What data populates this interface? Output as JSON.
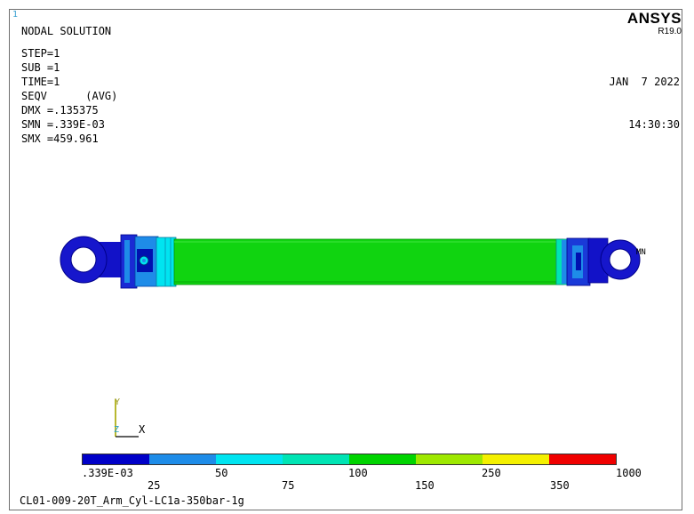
{
  "window_number": "1",
  "title": "NODAL SOLUTION",
  "params": [
    "STEP=1",
    "SUB =1",
    "TIME=1",
    "SEQV      (AVG)",
    "DMX =.135375",
    "SMN =.339E-03",
    "SMX =459.961"
  ],
  "logo": {
    "brand": "ANSYS",
    "release": "R19.0"
  },
  "datetime": {
    "date": "JAN  7 2022",
    "time": "14:30:30"
  },
  "min_marker": "MN",
  "triad": {
    "x": "X",
    "y": "Y",
    "z": "Z"
  },
  "legend": {
    "colors": [
      "#0000c8",
      "#1e8ce8",
      "#00e4f0",
      "#00e4b4",
      "#00d400",
      "#9ee800",
      "#f4f000",
      "#f00000"
    ],
    "upper_labels": [
      ".339E-03",
      "50",
      "100",
      "250",
      "1000"
    ],
    "lower_labels": [
      "25",
      "75",
      "150",
      "350"
    ]
  },
  "subtitle": "CL01-009-20T_Arm_Cyl-LC1a-350bar-1g"
}
